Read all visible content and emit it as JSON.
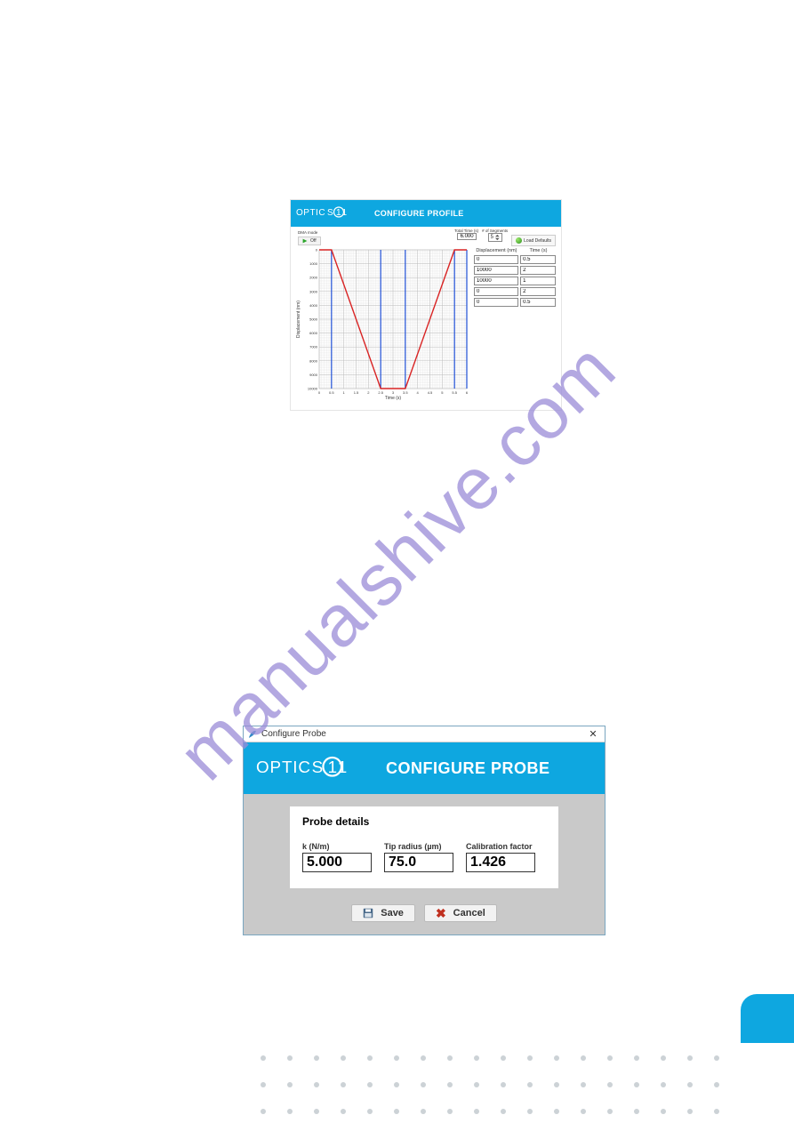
{
  "watermark": "manualshive.com",
  "profile": {
    "bar_title": "CONFIGURE PROFILE",
    "bar_color": "#0ea7e0",
    "dma_label": "DMA mode",
    "dma_state": "Off",
    "total_time_label": "Total Time (s)",
    "total_time_value": "6.000",
    "segments_label": "# of Segments",
    "segments_value": "5",
    "load_defaults_label": "Load Defaults",
    "seg_header_disp": "Displacement (nm)",
    "seg_header_time": "Time (s)",
    "segments": [
      {
        "disp": "0",
        "time": "0.5"
      },
      {
        "disp": "10000",
        "time": "2"
      },
      {
        "disp": "10000",
        "time": "1"
      },
      {
        "disp": "0",
        "time": "2"
      },
      {
        "disp": "0",
        "time": "0.5"
      }
    ],
    "chart": {
      "type": "line",
      "xlabel": "Time (s)",
      "ylabel": "Displacement (nm)",
      "background_color": "#ffffff",
      "grid_color_major": "#bcbcbc",
      "grid_color_minor": "#e2e2e2",
      "xlim": [
        0,
        6
      ],
      "xtick_step_major": 0.5,
      "xtick_step_minor": 0.1,
      "xticks_labels": [
        "0",
        "0.5",
        "1",
        "1.5",
        "2",
        "2.5",
        "3",
        "3.5",
        "4",
        "4.5",
        "5",
        "5.5",
        "6"
      ],
      "ylim": [
        10000,
        0
      ],
      "ytick_step_major": 1000,
      "yticks_labels": [
        "0",
        "1000",
        "2000",
        "3000",
        "4000",
        "5000",
        "6000",
        "7000",
        "8000",
        "9000",
        "10000"
      ],
      "label_fontsize": 5,
      "tick_fontsize": 4,
      "line_color": "#d92424",
      "line_width": 1.4,
      "segment_divider_color": "#1f4fd6",
      "segment_divider_width": 1.2,
      "segment_dividers_x": [
        0.5,
        2.5,
        3.5,
        5.5,
        6.0
      ],
      "points_xy": [
        [
          0,
          0
        ],
        [
          0.5,
          0
        ],
        [
          2.5,
          10000
        ],
        [
          3.5,
          10000
        ],
        [
          5.5,
          0
        ],
        [
          6.0,
          0
        ]
      ]
    }
  },
  "probe": {
    "titlebar_text": "Configure Probe",
    "bar_title": "CONFIGURE PROBE",
    "bar_color": "#0ea7e0",
    "card_title": "Probe details",
    "fields": {
      "k_label": "k (N/m)",
      "k_value": "5.000",
      "tip_label": "Tip radius (µm)",
      "tip_value": "75.0",
      "cal_label": "Calibration factor",
      "cal_value": "1.426"
    },
    "save_label": "Save",
    "cancel_label": "Cancel"
  },
  "dots": {
    "rows": 3,
    "per_row": 18,
    "color": "#ccd2d6"
  }
}
